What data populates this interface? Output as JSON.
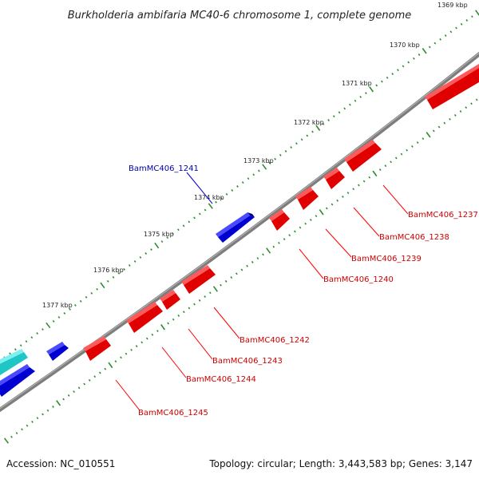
{
  "title": "Burkholderia ambifaria MC40-6 chromosome 1, complete genome",
  "footer": {
    "accession": "Accession: NC_010551",
    "summary": "Topology: circular; Length: 3,443,583 bp; Genes: 3,147"
  },
  "colors": {
    "backbone": "#8a8a8a",
    "tick": "#2e8b2e",
    "reverse_gene": "#ff0000",
    "forward_gene": "#0000ee",
    "forward_gene_light": "#22cccc",
    "reverse_label": "#cc0000",
    "forward_label": "#0000aa"
  },
  "ticks": [
    {
      "label": "1369 kbp"
    },
    {
      "label": "1370 kbp"
    },
    {
      "label": "1371 kbp"
    },
    {
      "label": "1372 kbp"
    },
    {
      "label": "1373 kbp"
    },
    {
      "label": "1374 kbp"
    },
    {
      "label": "1375 kbp"
    },
    {
      "label": "1376 kbp"
    },
    {
      "label": "1377 kbp"
    }
  ],
  "genes": [
    {
      "id": "g1237",
      "label": "BamMC406_1237",
      "strand": "reverse"
    },
    {
      "id": "g1238",
      "label": "BamMC406_1238",
      "strand": "reverse"
    },
    {
      "id": "g1239",
      "label": "BamMC406_1239",
      "strand": "reverse"
    },
    {
      "id": "g1240",
      "label": "BamMC406_1240",
      "strand": "reverse"
    },
    {
      "id": "g1241",
      "label": "BamMC406_1241",
      "strand": "forward"
    },
    {
      "id": "g1242",
      "label": "BamMC406_1242",
      "strand": "reverse"
    },
    {
      "id": "g1243",
      "label": "BamMC406_1243",
      "strand": "reverse"
    },
    {
      "id": "g1244",
      "label": "BamMC406_1244",
      "strand": "reverse"
    },
    {
      "id": "g1245",
      "label": "BamMC406_1245",
      "strand": "reverse"
    }
  ]
}
